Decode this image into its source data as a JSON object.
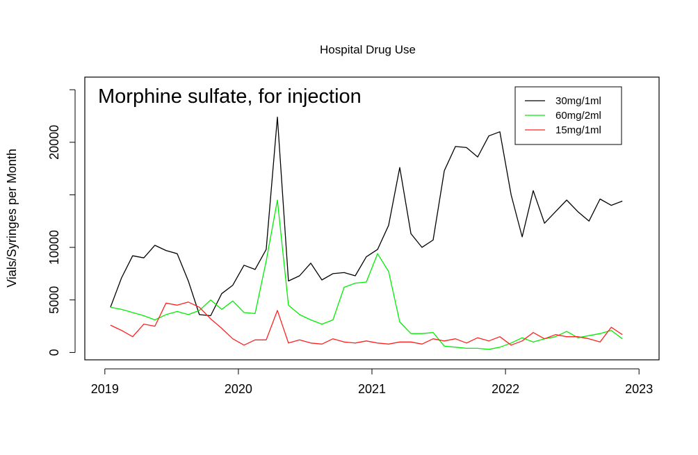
{
  "chart_data": {
    "type": "line",
    "title": "Hospital Drug Use",
    "annotation": "Morphine sulfate, for injection",
    "xlabel": "",
    "ylabel": "Vials/Syringes per Month",
    "x_ticks": [
      {
        "value": 2019,
        "label": "2019"
      },
      {
        "value": 2020,
        "label": "2020"
      },
      {
        "value": 2021,
        "label": "2021"
      },
      {
        "value": 2022,
        "label": "2022"
      },
      {
        "value": 2023,
        "label": "2023"
      }
    ],
    "y_ticks": [
      {
        "value": 0,
        "label": "0"
      },
      {
        "value": 5000,
        "label": "5000"
      },
      {
        "value": 10000,
        "label": "10000"
      },
      {
        "value": 15000,
        "label": ""
      },
      {
        "value": 20000,
        "label": "20000"
      },
      {
        "value": 25000,
        "label": ""
      }
    ],
    "xlim": [
      2018.85,
      2023.15
    ],
    "ylim": [
      -700,
      26200
    ],
    "legend_position": "top-right",
    "x": [
      2019.042,
      2019.125,
      2019.208,
      2019.292,
      2019.375,
      2019.458,
      2019.542,
      2019.625,
      2019.708,
      2019.792,
      2019.875,
      2019.958,
      2020.042,
      2020.125,
      2020.208,
      2020.292,
      2020.375,
      2020.458,
      2020.542,
      2020.625,
      2020.708,
      2020.792,
      2020.875,
      2020.958,
      2021.042,
      2021.125,
      2021.208,
      2021.292,
      2021.375,
      2021.458,
      2021.542,
      2021.625,
      2021.708,
      2021.792,
      2021.875,
      2021.958,
      2022.042,
      2022.125,
      2022.208,
      2022.292,
      2022.375,
      2022.458,
      2022.542,
      2022.625,
      2022.708,
      2022.792,
      2022.875
    ],
    "series": [
      {
        "name": "30mg/1ml",
        "color": "#000000",
        "values": [
          4300,
          7100,
          9200,
          9000,
          10200,
          9700,
          9400,
          6800,
          3600,
          3500,
          5600,
          6400,
          8300,
          7900,
          9800,
          22400,
          6800,
          7300,
          8500,
          6900,
          7500,
          7600,
          7300,
          9100,
          9800,
          12100,
          17600,
          11300,
          10000,
          10700,
          17300,
          19600,
          19500,
          18600,
          20600,
          21000,
          15000,
          11000,
          15400,
          12300,
          13400,
          14500,
          13400,
          12500,
          14600,
          14000,
          14400
        ]
      },
      {
        "name": "60mg/2ml",
        "color": "#00ee00",
        "values": [
          4300,
          4100,
          3800,
          3500,
          3100,
          3600,
          3900,
          3600,
          4000,
          5000,
          4100,
          4900,
          3800,
          3700,
          8700,
          14500,
          4500,
          3600,
          3100,
          2700,
          3100,
          6200,
          6600,
          6700,
          9400,
          7700,
          2900,
          1800,
          1800,
          1900,
          600,
          500,
          400,
          400,
          300,
          500,
          900,
          1400,
          1000,
          1300,
          1500,
          2000,
          1400,
          1600,
          1800,
          2100,
          1300
        ]
      },
      {
        "name": "15mg/1ml",
        "color": "#ff2020",
        "values": [
          2600,
          2100,
          1500,
          2700,
          2500,
          4700,
          4500,
          4800,
          4300,
          3200,
          2300,
          1300,
          700,
          1200,
          1200,
          4000,
          900,
          1200,
          900,
          800,
          1300,
          1000,
          900,
          1100,
          900,
          800,
          1000,
          1000,
          800,
          1300,
          1100,
          1300,
          900,
          1400,
          1100,
          1500,
          700,
          1100,
          1900,
          1300,
          1700,
          1500,
          1500,
          1300,
          1000,
          2400,
          1700
        ]
      }
    ]
  }
}
